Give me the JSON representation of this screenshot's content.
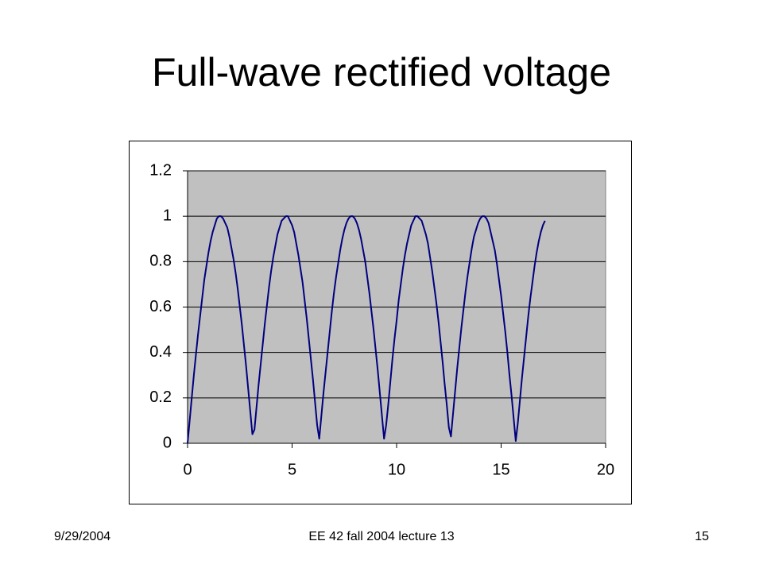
{
  "chart_data": {
    "type": "line",
    "title": "Full-wave rectified voltage",
    "x": [
      0,
      0.1,
      0.2,
      0.3,
      0.4,
      0.5,
      0.6,
      0.7,
      0.8,
      0.9,
      1,
      1.1,
      1.2,
      1.3,
      1.4,
      1.5,
      1.6,
      1.7,
      1.8,
      1.9,
      2,
      2.1,
      2.2,
      2.3,
      2.4,
      2.5,
      2.6,
      2.7,
      2.8,
      2.9,
      3,
      3.1,
      3.2,
      3.3,
      3.4,
      3.5,
      3.6,
      3.7,
      3.8,
      3.9,
      4,
      4.1,
      4.2,
      4.3,
      4.4,
      4.5,
      4.6,
      4.7,
      4.8,
      4.9,
      5,
      5.1,
      5.2,
      5.3,
      5.4,
      5.5,
      5.6,
      5.7,
      5.8,
      5.9,
      6,
      6.1,
      6.2,
      6.3,
      6.4,
      6.5,
      6.6,
      6.7,
      6.8,
      6.9,
      7,
      7.1,
      7.2,
      7.3,
      7.4,
      7.5,
      7.6,
      7.7,
      7.8,
      7.9,
      8,
      8.1,
      8.2,
      8.3,
      8.4,
      8.5,
      8.6,
      8.7,
      8.8,
      8.9,
      9,
      9.1,
      9.2,
      9.3,
      9.4,
      9.5,
      9.6,
      9.7,
      9.8,
      9.9,
      10,
      10.1,
      10.2,
      10.3,
      10.4,
      10.5,
      10.6,
      10.7,
      10.8,
      10.9,
      11,
      11.1,
      11.2,
      11.3,
      11.4,
      11.5,
      11.6,
      11.7,
      11.8,
      11.9,
      12,
      12.1,
      12.2,
      12.3,
      12.4,
      12.5,
      12.6,
      12.7,
      12.8,
      12.9,
      13,
      13.1,
      13.2,
      13.3,
      13.4,
      13.5,
      13.6,
      13.7,
      13.8,
      13.9,
      14,
      14.1,
      14.2,
      14.3,
      14.4,
      14.5,
      14.6,
      14.7,
      14.8,
      14.9,
      15,
      15.1,
      15.2,
      15.3,
      15.4,
      15.5,
      15.6,
      15.7,
      15.8,
      15.9,
      16,
      16.1,
      16.2,
      16.3,
      16.4,
      16.5,
      16.6,
      16.7,
      16.8,
      16.9,
      17,
      17.1
    ],
    "values": [
      0,
      0.1,
      0.2,
      0.3,
      0.39,
      0.48,
      0.56,
      0.64,
      0.72,
      0.78,
      0.84,
      0.89,
      0.93,
      0.96,
      0.99,
      1.0,
      1.0,
      0.99,
      0.97,
      0.95,
      0.91,
      0.86,
      0.81,
      0.75,
      0.68,
      0.6,
      0.52,
      0.43,
      0.34,
      0.24,
      0.14,
      0.04,
      0.06,
      0.16,
      0.26,
      0.35,
      0.44,
      0.53,
      0.61,
      0.69,
      0.76,
      0.82,
      0.87,
      0.92,
      0.95,
      0.98,
      0.99,
      1.0,
      1.0,
      0.98,
      0.96,
      0.93,
      0.88,
      0.83,
      0.77,
      0.71,
      0.63,
      0.55,
      0.46,
      0.37,
      0.28,
      0.18,
      0.08,
      0.02,
      0.12,
      0.22,
      0.31,
      0.4,
      0.49,
      0.58,
      0.66,
      0.73,
      0.79,
      0.85,
      0.9,
      0.94,
      0.97,
      0.99,
      1.0,
      1.0,
      0.99,
      0.97,
      0.94,
      0.9,
      0.85,
      0.8,
      0.73,
      0.66,
      0.58,
      0.5,
      0.41,
      0.32,
      0.22,
      0.12,
      0.02,
      0.08,
      0.17,
      0.27,
      0.37,
      0.46,
      0.54,
      0.63,
      0.7,
      0.77,
      0.83,
      0.88,
      0.92,
      0.96,
      0.98,
      1.0,
      1.0,
      0.99,
      0.98,
      0.95,
      0.92,
      0.88,
      0.82,
      0.76,
      0.69,
      0.62,
      0.54,
      0.45,
      0.36,
      0.26,
      0.17,
      0.07,
      0.03,
      0.13,
      0.23,
      0.33,
      0.42,
      0.51,
      0.59,
      0.67,
      0.74,
      0.8,
      0.86,
      0.91,
      0.94,
      0.97,
      0.99,
      1.0,
      1.0,
      0.99,
      0.97,
      0.93,
      0.89,
      0.85,
      0.79,
      0.72,
      0.65,
      0.57,
      0.49,
      0.4,
      0.3,
      0.21,
      0.11,
      0.01,
      0.09,
      0.19,
      0.29,
      0.38,
      0.47,
      0.56,
      0.64,
      0.71,
      0.78,
      0.84,
      0.89,
      0.93,
      0.96,
      0.98
    ],
    "color": "#000080",
    "plot_background": "#c0c0c0",
    "xlim": [
      0,
      20
    ],
    "xticks": [
      0,
      5,
      10,
      15,
      20
    ],
    "ylim": [
      0,
      1.2
    ],
    "yticks": [
      0,
      0.2,
      0.4,
      0.6,
      0.8,
      1,
      1.2
    ],
    "grid": true
  },
  "footer": {
    "date": "9/29/2004",
    "course": "EE 42 fall 2004 lecture 13",
    "page": "15"
  }
}
